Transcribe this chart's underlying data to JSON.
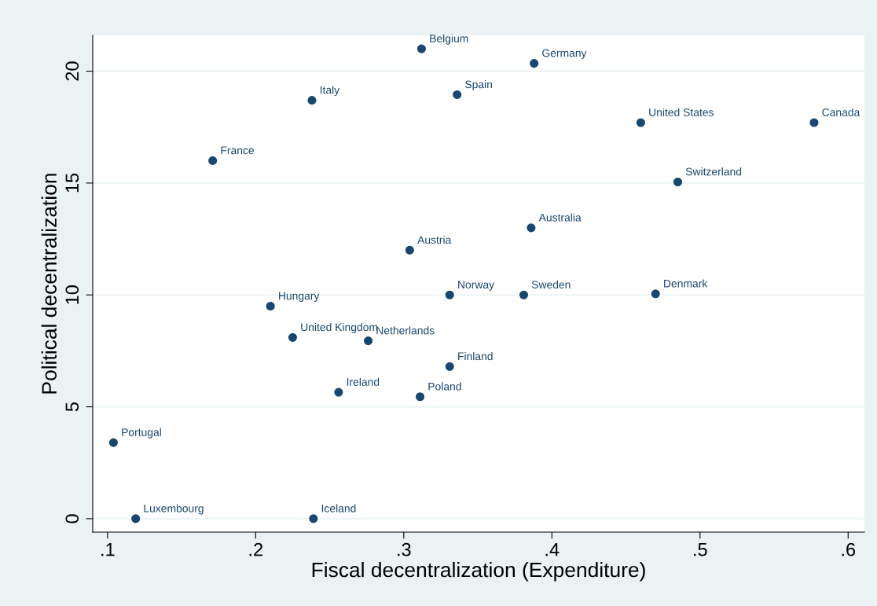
{
  "chart_data": {
    "type": "scatter",
    "xlabel": "Fiscal decentralization (Expenditure)",
    "ylabel": "Political decentralization",
    "x": [
      0.312,
      0.388,
      0.238,
      0.336,
      0.46,
      0.577,
      0.171,
      0.485,
      0.386,
      0.304,
      0.331,
      0.381,
      0.47,
      0.21,
      0.225,
      0.276,
      0.331,
      0.256,
      0.311,
      0.104,
      0.119,
      0.239
    ],
    "values": [
      21.0,
      20.35,
      18.7,
      18.95,
      17.7,
      17.7,
      16.0,
      15.05,
      13.0,
      12.0,
      10.0,
      10.0,
      10.05,
      9.5,
      8.1,
      7.95,
      6.8,
      5.65,
      5.45,
      3.4,
      0,
      0
    ],
    "color": "#1a476f",
    "marker": "circle",
    "grid": "y",
    "annotations": [
      {
        "text": "Belgium",
        "x": 0.312,
        "y": 21.0
      },
      {
        "text": "Germany",
        "x": 0.388,
        "y": 20.35
      },
      {
        "text": "Italy",
        "x": 0.238,
        "y": 18.7
      },
      {
        "text": "Spain",
        "x": 0.336,
        "y": 18.95
      },
      {
        "text": "United States",
        "x": 0.46,
        "y": 17.7
      },
      {
        "text": "Canada",
        "x": 0.577,
        "y": 17.7
      },
      {
        "text": "France",
        "x": 0.171,
        "y": 16.0
      },
      {
        "text": "Switzerland",
        "x": 0.485,
        "y": 15.05
      },
      {
        "text": "Australia",
        "x": 0.386,
        "y": 13.0
      },
      {
        "text": "Austria",
        "x": 0.304,
        "y": 12.0
      },
      {
        "text": "Norway",
        "x": 0.331,
        "y": 10.0
      },
      {
        "text": "Sweden",
        "x": 0.381,
        "y": 10.0
      },
      {
        "text": "Denmark",
        "x": 0.47,
        "y": 10.05
      },
      {
        "text": "Hungary",
        "x": 0.21,
        "y": 9.5
      },
      {
        "text": "United Kingdom",
        "x": 0.225,
        "y": 8.1
      },
      {
        "text": "Netherlands",
        "x": 0.276,
        "y": 7.95
      },
      {
        "text": "Finland",
        "x": 0.331,
        "y": 6.8
      },
      {
        "text": "Ireland",
        "x": 0.256,
        "y": 5.65
      },
      {
        "text": "Poland",
        "x": 0.311,
        "y": 5.45
      },
      {
        "text": "Portugal",
        "x": 0.104,
        "y": 3.4
      },
      {
        "text": "Luxembourg",
        "x": 0.119,
        "y": 0
      },
      {
        "text": "Iceland",
        "x": 0.239,
        "y": 0
      }
    ],
    "xlim": [
      0.09,
      0.611
    ],
    "ylim": [
      -0.6,
      21.6
    ],
    "xticks": [
      {
        "value": 0.1,
        "label": ".1"
      },
      {
        "value": 0.2,
        "label": ".2"
      },
      {
        "value": 0.3,
        "label": ".3"
      },
      {
        "value": 0.4,
        "label": ".4"
      },
      {
        "value": 0.5,
        "label": ".5"
      },
      {
        "value": 0.6,
        "label": ".6"
      }
    ],
    "yticks": [
      0,
      5,
      10,
      15,
      20
    ]
  }
}
